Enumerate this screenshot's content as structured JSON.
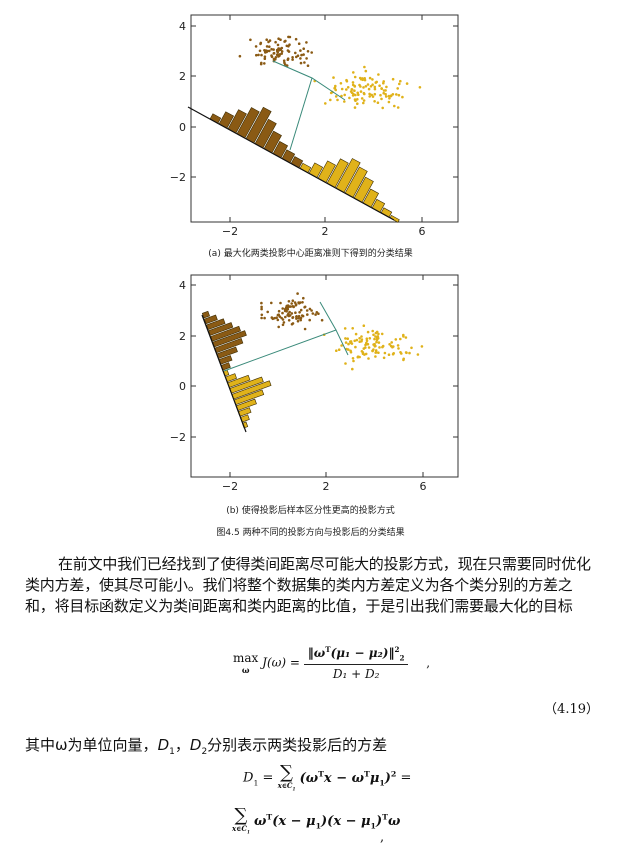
{
  "figure_a": {
    "yticks": [
      "4",
      "2",
      "0",
      "−2"
    ],
    "xticks": [
      "−2",
      "2",
      "6"
    ],
    "caption": "(a)  最大化两类投影中心距离准则下得到的分类结果"
  },
  "figure_b": {
    "yticks": [
      "4",
      "2",
      "0",
      "−2"
    ],
    "xticks": [
      "−2",
      "2",
      "6"
    ],
    "caption": "(b)  使得投影后样本区分性更高的投影方式"
  },
  "figure_caption": "图4.5   两种不同的投影方向与投影后的分类结果",
  "paragraph": "在前文中我们已经找到了使得类间距离尽可能大的投影方式，现在只需要同时优化类内方差，使其尽可能小。我们将整个数据集的类内方差定义为各个类分别的方差之和，将目标函数定义为类间距离和类内距离的比值，于是引出我们需要最大化的目标",
  "equation_4_19": {
    "lhs_max": "max",
    "lhs_sub": "ω",
    "lhs_func": "J(ω) =",
    "numerator": "‖ω",
    "numerator_rest": "(μ₁ − μ₂)‖",
    "denominator": "D₁ + D₂",
    "trailing": ",",
    "number": "（4.19）"
  },
  "sentence2_part1": "其中ω为单位向量，",
  "sentence2_D1": "D",
  "sentence2_sep": "，",
  "sentence2_D2": "D",
  "sentence2_part2": "分别表示两类投影后的方差",
  "equation_D1": {
    "line1_lhs": "D",
    "line1_eq": " = ",
    "line1_sum_sub": "x∈C",
    "line1_body": "(ω",
    "line1_body2": "x − ω",
    "line1_body3": "μ",
    "line1_end": ")",
    "line1_trail": " =",
    "line2_sum_sub": "x∈C",
    "line2_body": "ω",
    "line2_body2": "(x − μ",
    "line2_body3": ")(x − μ",
    "line2_body4": ")",
    "line2_body5": "ω",
    "line2_trail": ","
  },
  "colors": {
    "brown": "#8a5a14",
    "gold": "#e0b21a",
    "line": "#3a8a7a"
  }
}
